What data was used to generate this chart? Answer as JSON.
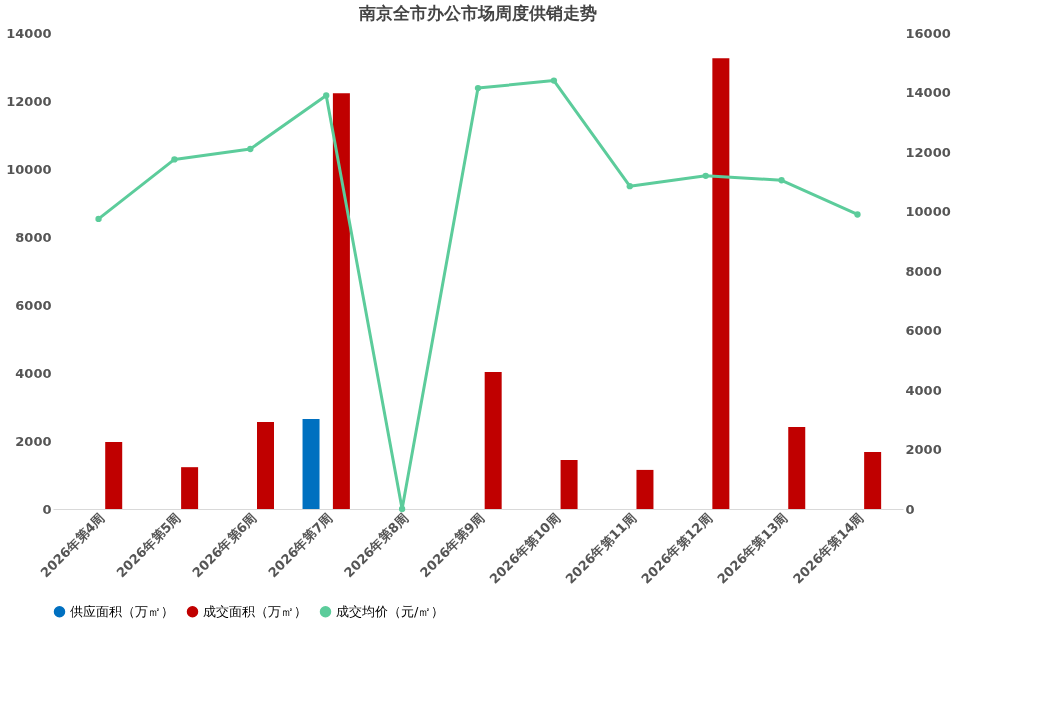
{
  "chart_data": {
    "type": "bar",
    "title": "南京全市办公市场周度供销走势",
    "categories": [
      "2026年第4周",
      "2026年第5周",
      "2026年第6周",
      "2026年第7周",
      "2026年第8周",
      "2026年第9周",
      "2026年第10周",
      "2026年第11周",
      "2026年第12周",
      "2026年第13周",
      "2026年第14周"
    ],
    "series": [
      {
        "name": "供应面积（万㎡）",
        "color": "#0070c0",
        "values": [
          null,
          null,
          null,
          2650,
          null,
          null,
          null,
          null,
          null,
          null,
          null
        ]
      },
      {
        "name": "成交面积（万㎡）",
        "color": "#c00000",
        "values": [
          1970,
          1230,
          2560,
          12230,
          null,
          4030,
          1440,
          1150,
          13260,
          2410,
          1680
        ]
      },
      {
        "name": "成交均价（元/㎡）",
        "color": "#5ccc9b",
        "type": "line",
        "axis": "y2",
        "marker": "circle",
        "values": [
          9750,
          11750,
          12100,
          13900,
          0,
          14150,
          14400,
          10850,
          11200,
          11050,
          9900
        ]
      }
    ],
    "ylim": [
      0,
      14000
    ],
    "yticks": [
      0,
      2000,
      4000,
      6000,
      8000,
      10000,
      12000,
      14000
    ],
    "y2lim": [
      0,
      16000
    ],
    "y2ticks": [
      0,
      2000,
      4000,
      6000,
      8000,
      10000,
      12000,
      14000,
      16000
    ],
    "grid": false,
    "legend": "bottom"
  }
}
